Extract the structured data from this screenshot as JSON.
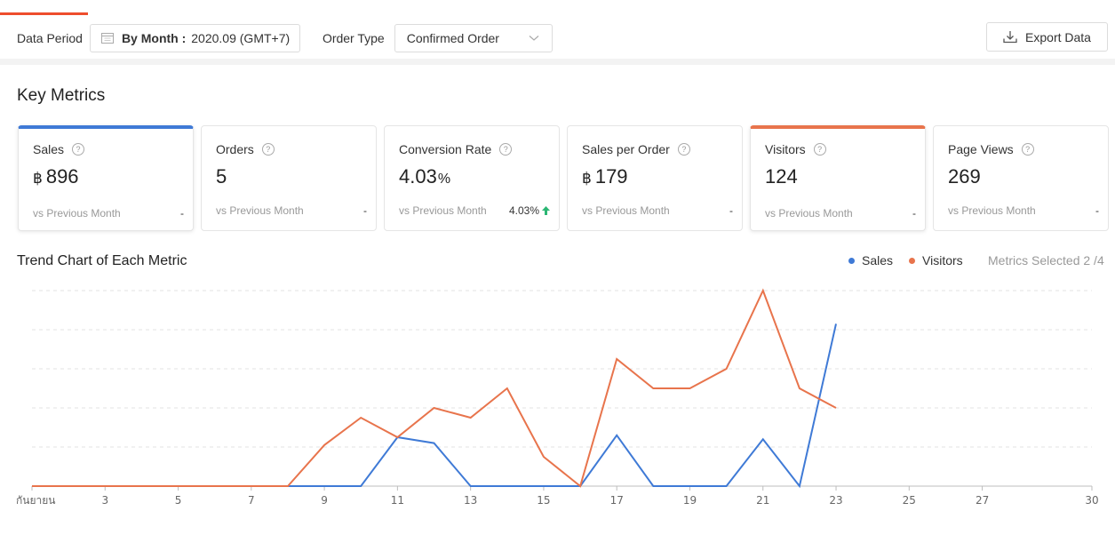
{
  "filters": {
    "period_label": "Data Period",
    "period_mode": "By Month :",
    "period_value": "2020.09 (GMT+7)",
    "order_type_label": "Order Type",
    "order_type_value": "Confirmed Order",
    "export_label": "Export Data"
  },
  "key_metrics_title": "Key Metrics",
  "cards": [
    {
      "label": "Sales",
      "currency": "฿",
      "value": "896",
      "compare": "vs Previous Month",
      "change": "-"
    },
    {
      "label": "Orders",
      "value": "5",
      "compare": "vs Previous Month",
      "change": "-"
    },
    {
      "label": "Conversion Rate",
      "value": "4.03",
      "suffix": "%",
      "compare": "vs Previous Month",
      "change": "4.03%"
    },
    {
      "label": "Sales per Order",
      "currency": "฿",
      "value": "179",
      "compare": "vs Previous Month",
      "change": "-"
    },
    {
      "label": "Visitors",
      "value": "124",
      "compare": "vs Previous Month",
      "change": "-"
    },
    {
      "label": "Page Views",
      "value": "269",
      "compare": "vs Previous Month",
      "change": "-"
    }
  ],
  "trend": {
    "title": "Trend Chart of Each Metric",
    "legend": [
      {
        "name": "Sales",
        "color": "#3f7ad6"
      },
      {
        "name": "Visitors",
        "color": "#e8744c"
      }
    ],
    "metrics_selected": "Metrics Selected 2 /4"
  },
  "chart_data": {
    "type": "line",
    "x": [
      1,
      2,
      3,
      4,
      5,
      6,
      7,
      8,
      9,
      10,
      11,
      12,
      13,
      14,
      15,
      16,
      17,
      18,
      19,
      20,
      21,
      22,
      23
    ],
    "x_ticks": [
      1,
      3,
      5,
      7,
      9,
      11,
      13,
      15,
      17,
      19,
      21,
      23,
      25,
      27,
      30
    ],
    "x_tick_labels": [
      "กันยายน",
      "3",
      "5",
      "7",
      "9",
      "11",
      "13",
      "15",
      "17",
      "19",
      "21",
      "23",
      "25",
      "27",
      "30"
    ],
    "xlim": [
      1,
      30
    ],
    "ylim": [
      0,
      100
    ],
    "grid": true,
    "y_scale_note": "",
    "series": [
      {
        "name": "Sales",
        "color": "#3f7ad6",
        "values": [
          0,
          0,
          0,
          0,
          0,
          0,
          0,
          0,
          0,
          0,
          25,
          22,
          0,
          0,
          0,
          0,
          26,
          0,
          0,
          0,
          24,
          0,
          83
        ]
      },
      {
        "name": "Visitors",
        "color": "#e8744c",
        "values": [
          0,
          0,
          0,
          0,
          0,
          0,
          0,
          0,
          21,
          35,
          25,
          40,
          35,
          50,
          15,
          0,
          65,
          50,
          50,
          60,
          100,
          50,
          40
        ]
      }
    ]
  }
}
